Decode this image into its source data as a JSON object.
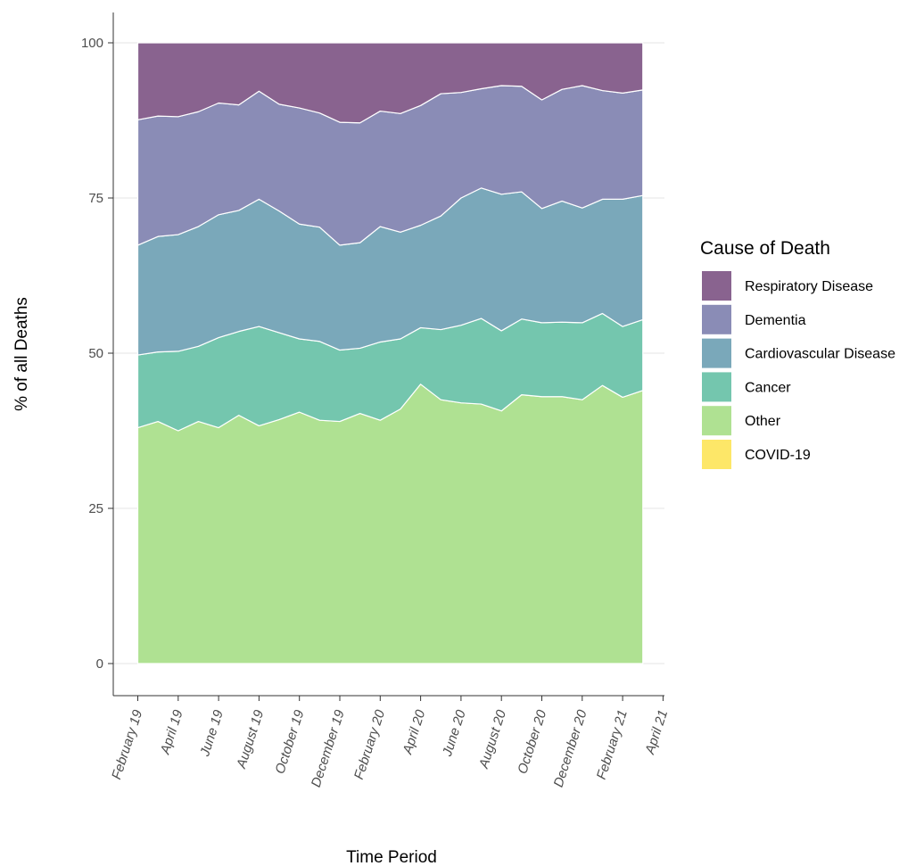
{
  "chart_data": {
    "type": "area",
    "stacked": true,
    "xlabel": "Time Period",
    "ylabel": "% of all Deaths",
    "ylim": [
      0,
      100
    ],
    "y_ticks": [
      0,
      25,
      50,
      75,
      100
    ],
    "grid": "horizontal major lines",
    "x_ticks": [
      {
        "label": "February 19",
        "date": "2019-02"
      },
      {
        "label": "April 19",
        "date": "2019-04"
      },
      {
        "label": "June 19",
        "date": "2019-06"
      },
      {
        "label": "August 19",
        "date": "2019-08"
      },
      {
        "label": "October 19",
        "date": "2019-10"
      },
      {
        "label": "December 19",
        "date": "2019-12"
      },
      {
        "label": "February 20",
        "date": "2020-02"
      },
      {
        "label": "April 20",
        "date": "2020-04"
      },
      {
        "label": "June 20",
        "date": "2020-06"
      },
      {
        "label": "August 20",
        "date": "2020-08"
      },
      {
        "label": "October 20",
        "date": "2020-10"
      },
      {
        "label": "December 20",
        "date": "2020-12"
      },
      {
        "label": "February 21",
        "date": "2021-02"
      },
      {
        "label": "April 21",
        "date": "2021-04"
      }
    ],
    "x": [
      "2019-02",
      "2019-03",
      "2019-04",
      "2019-05",
      "2019-06",
      "2019-07",
      "2019-08",
      "2019-09",
      "2019-10",
      "2019-11",
      "2019-12",
      "2020-01",
      "2020-02",
      "2020-03",
      "2020-04",
      "2020-05",
      "2020-06",
      "2020-07",
      "2020-08",
      "2020-09",
      "2020-10",
      "2020-11",
      "2020-12",
      "2021-01",
      "2021-02",
      "2021-03"
    ],
    "series": [
      {
        "name": "COVID-19",
        "color": "#fde768",
        "values": [
          0,
          0,
          0,
          0,
          0,
          0,
          0,
          0,
          0,
          0,
          0,
          0,
          0,
          0,
          0,
          0,
          0,
          0,
          0,
          0,
          0,
          0,
          0,
          0,
          0,
          0
        ]
      },
      {
        "name": "Other",
        "color": "#afe192",
        "values": [
          38,
          39,
          37.5,
          39,
          38,
          40,
          38.3,
          39.3,
          40.5,
          39.2,
          39,
          40.3,
          39.2,
          41,
          45,
          42.5,
          42,
          41.8,
          40.7,
          43.3,
          43,
          43,
          42.5,
          44.8,
          42.9,
          44
        ]
      },
      {
        "name": "Cancer",
        "color": "#74c6ae",
        "values": [
          11.7,
          11.2,
          12.8,
          12.1,
          14.5,
          13.5,
          16,
          14,
          11.8,
          12.7,
          11.5,
          10.5,
          12.6,
          11.3,
          9.1,
          11.3,
          12.5,
          13.8,
          12.9,
          12.2,
          11.9,
          12,
          12.4,
          11.6,
          11.4,
          11.4
        ]
      },
      {
        "name": "Cardiovascular Disease",
        "color": "#7aa8ba",
        "values": [
          17.7,
          18.6,
          18.8,
          19.3,
          19.8,
          19.5,
          20.5,
          19.6,
          18.5,
          18.4,
          16.9,
          17,
          18.6,
          17.2,
          16.5,
          18.3,
          20.5,
          21,
          22,
          20.5,
          18.4,
          19.5,
          18.5,
          18.4,
          20.5,
          20
        ]
      },
      {
        "name": "Dementia",
        "color": "#8a8cb6",
        "values": [
          20.2,
          19.4,
          19,
          18.5,
          18,
          17,
          17.4,
          17.2,
          18.7,
          18.4,
          19.8,
          19.3,
          18.6,
          19.1,
          19.3,
          19.7,
          17,
          16,
          17.5,
          17,
          17.5,
          18,
          19.7,
          17.5,
          17.1,
          17
        ]
      },
      {
        "name": "Respiratory Disease",
        "color": "#89638f",
        "values": [
          12.4,
          11.8,
          11.9,
          11.1,
          9.7,
          10,
          7.8,
          9.9,
          10.5,
          11.3,
          12.8,
          12.9,
          11,
          11.4,
          10.1,
          8.2,
          8,
          7.4,
          6.9,
          7,
          9.2,
          7.5,
          6.9,
          7.7,
          8.1,
          7.6
        ]
      }
    ],
    "legend": {
      "title": "Cause of Death",
      "position": "right",
      "items": [
        {
          "label": "Respiratory Disease",
          "color": "#89638f"
        },
        {
          "label": "Dementia",
          "color": "#8a8cb6"
        },
        {
          "label": "Cardiovascular Disease",
          "color": "#7aa8ba"
        },
        {
          "label": "Cancer",
          "color": "#74c6ae"
        },
        {
          "label": "Other",
          "color": "#afe192"
        },
        {
          "label": "COVID-19",
          "color": "#fde768"
        }
      ]
    }
  }
}
